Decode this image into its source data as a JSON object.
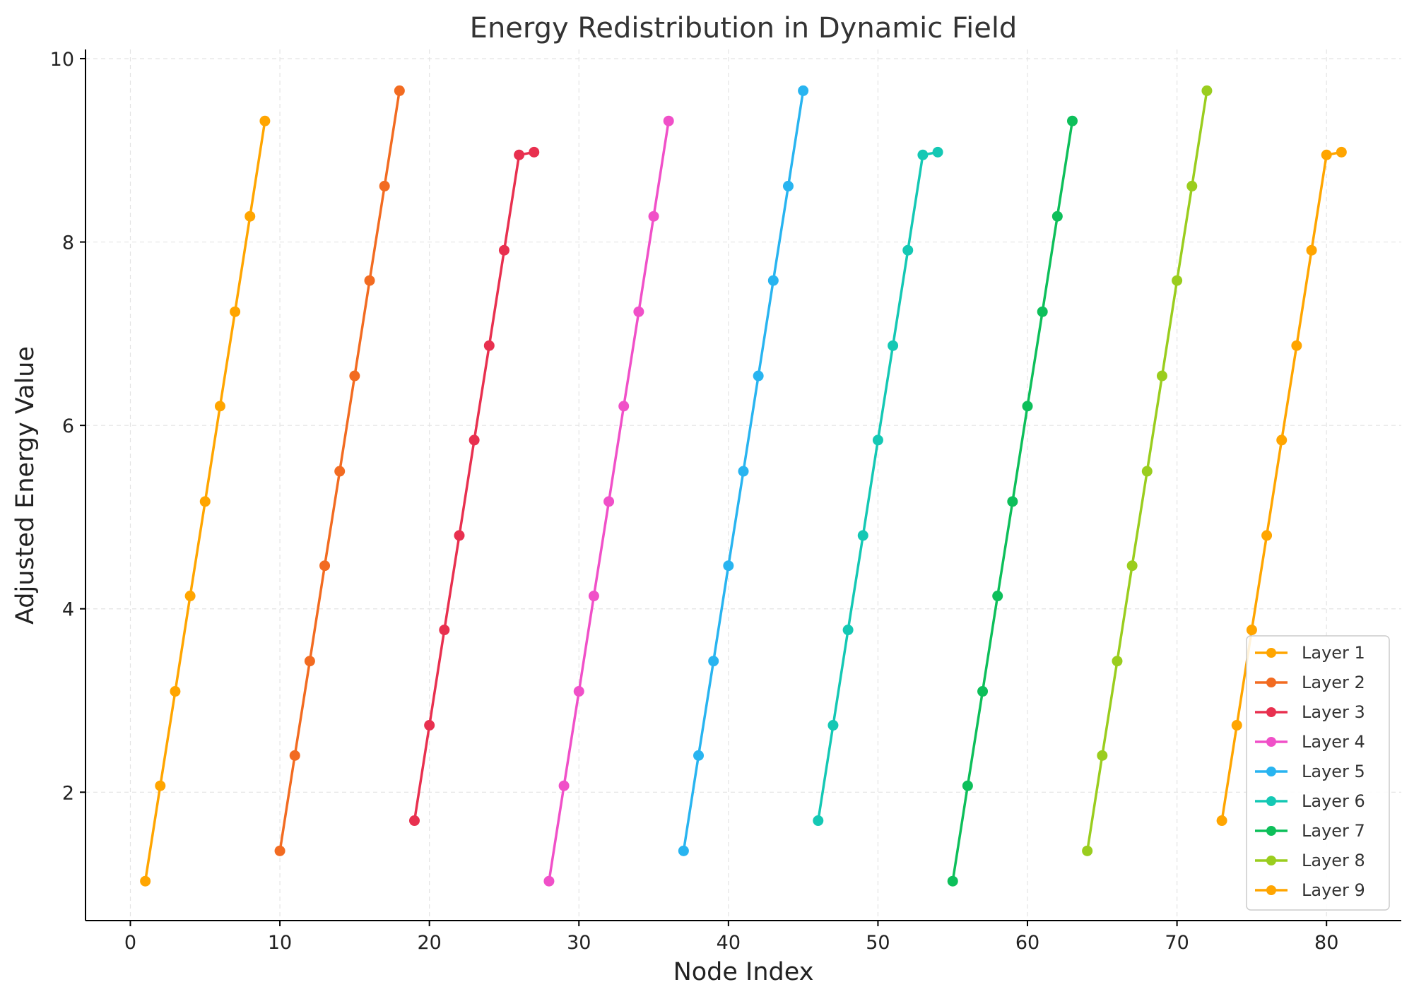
{
  "chart_data": {
    "type": "line",
    "title": "Energy Redistribution in Dynamic Field",
    "xlabel": "Node Index",
    "ylabel": "Adjusted Energy Value",
    "xlim": [
      -3,
      85
    ],
    "ylim": [
      0.6,
      10.1
    ],
    "xticks": [
      0,
      10,
      20,
      30,
      40,
      50,
      60,
      70,
      80
    ],
    "yticks": [
      2,
      4,
      6,
      8,
      10
    ],
    "grid": true,
    "legend_position": "bottom-right",
    "series": [
      {
        "name": "Layer 1",
        "color": "#FFA500",
        "x": [
          1,
          2,
          3,
          4,
          5,
          6,
          7,
          8,
          9
        ],
        "values": [
          1.03,
          2.07,
          3.1,
          4.14,
          5.17,
          6.21,
          7.24,
          8.28,
          9.32
        ]
      },
      {
        "name": "Layer 2",
        "color": "#F26B21",
        "x": [
          10,
          11,
          12,
          13,
          14,
          15,
          16,
          17,
          18
        ],
        "values": [
          1.36,
          2.4,
          3.43,
          4.47,
          5.5,
          6.54,
          7.58,
          8.61,
          9.65
        ]
      },
      {
        "name": "Layer 3",
        "color": "#E8304F",
        "x": [
          19,
          20,
          21,
          22,
          23,
          24,
          25,
          26,
          27
        ],
        "values": [
          1.69,
          2.73,
          3.77,
          4.8,
          5.84,
          6.87,
          7.91,
          8.95,
          8.98
        ]
      },
      {
        "name": "Layer 4",
        "color": "#F050C8",
        "x": [
          28,
          29,
          30,
          31,
          32,
          33,
          34,
          35,
          36
        ],
        "values": [
          1.03,
          2.07,
          3.1,
          4.14,
          5.17,
          6.21,
          7.24,
          8.28,
          9.32
        ]
      },
      {
        "name": "Layer 5",
        "color": "#28B4F0",
        "x": [
          37,
          38,
          39,
          40,
          41,
          42,
          43,
          44,
          45
        ],
        "values": [
          1.36,
          2.4,
          3.43,
          4.47,
          5.5,
          6.54,
          7.58,
          8.61,
          9.65
        ]
      },
      {
        "name": "Layer 6",
        "color": "#14C8B4",
        "x": [
          46,
          47,
          48,
          49,
          50,
          51,
          52,
          53,
          54
        ],
        "values": [
          1.69,
          2.73,
          3.77,
          4.8,
          5.84,
          6.87,
          7.91,
          8.95,
          8.98
        ]
      },
      {
        "name": "Layer 7",
        "color": "#0DBF5A",
        "x": [
          55,
          56,
          57,
          58,
          59,
          60,
          61,
          62,
          63
        ],
        "values": [
          1.03,
          2.07,
          3.1,
          4.14,
          5.17,
          6.21,
          7.24,
          8.28,
          9.32
        ]
      },
      {
        "name": "Layer 8",
        "color": "#9ACD1E",
        "x": [
          64,
          65,
          66,
          67,
          68,
          69,
          70,
          71,
          72
        ],
        "values": [
          1.36,
          2.4,
          3.43,
          4.47,
          5.5,
          6.54,
          7.58,
          8.61,
          9.65
        ]
      },
      {
        "name": "Layer 9",
        "color": "#FFA500",
        "x": [
          73,
          74,
          75,
          76,
          77,
          78,
          79,
          80,
          81
        ],
        "values": [
          1.69,
          2.73,
          3.77,
          4.8,
          5.84,
          6.87,
          7.91,
          8.95,
          8.98
        ]
      }
    ]
  }
}
